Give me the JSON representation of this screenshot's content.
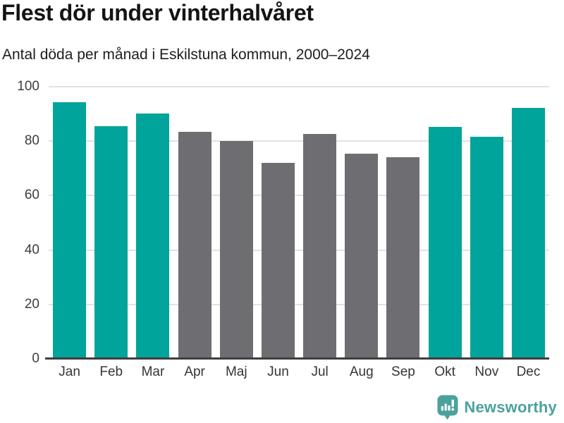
{
  "header": {
    "title": "Flest dör under vinterhalvåret",
    "subtitle": "Antal döda per månad i Eskilstuna kommun, 2000–2024"
  },
  "chart_data": {
    "type": "bar",
    "title": "Flest dör under vinterhalvåret",
    "subtitle": "Antal döda per månad i Eskilstuna kommun, 2000–2024",
    "categories": [
      "Jan",
      "Feb",
      "Mar",
      "Apr",
      "Maj",
      "Jun",
      "Jul",
      "Aug",
      "Sep",
      "Okt",
      "Nov",
      "Dec"
    ],
    "values": [
      94.3,
      85.5,
      90.1,
      83.5,
      80.0,
      72.0,
      82.7,
      75.4,
      74.1,
      85.3,
      81.7,
      92.3
    ],
    "ylim": [
      0,
      100
    ],
    "yticks": [
      0,
      20,
      40,
      60,
      80,
      100
    ],
    "grid": "horizontal",
    "legend": "none",
    "highlighted_categories": [
      "Jan",
      "Feb",
      "Mar",
      "Okt",
      "Nov",
      "Dec"
    ],
    "highlight_color": "#00a49a",
    "base_color": "#6e6e72",
    "gridline_color": "#e2e2e2",
    "axis_line_color": "#3e3e3e",
    "xlabel": "",
    "ylabel": ""
  },
  "branding": {
    "logo_text": "Newsworthy",
    "logo_color": "#4ba29d",
    "logo_icon": "bar-chart-speech-bubble-icon"
  }
}
